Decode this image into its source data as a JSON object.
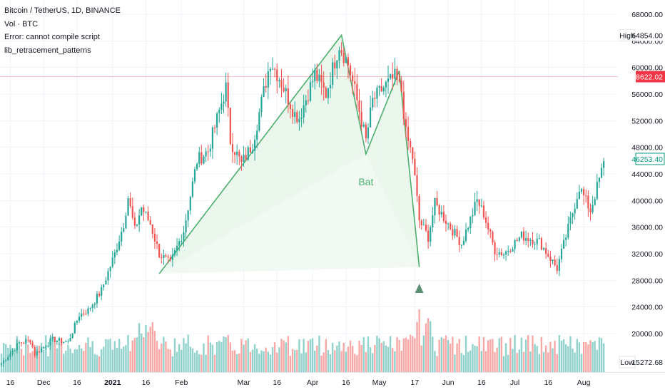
{
  "legend": {
    "line1": "Bitcoin / TetherUS, 1D, BINANCE",
    "line2": "Vol · BTC",
    "line3": "Error: cannot compile script",
    "line4": "lib_retracement_patterns"
  },
  "colors": {
    "up": "#26a69a",
    "down": "#ef5350",
    "pattern_line": "#4caf6e",
    "pattern_fill": "#e8f5e9",
    "price_line": "#f23645",
    "label_green": "#089981"
  },
  "chart_data": {
    "type": "candlestick",
    "title": "Bitcoin / TetherUS, 1D, BINANCE",
    "y_axis": {
      "ticks": [
        68000,
        64000,
        60000,
        56000,
        52000,
        48000,
        44000,
        40000,
        36000,
        32000,
        28000,
        24000,
        20000,
        16000
      ],
      "tick_labels": [
        "68000.00",
        "64000.00",
        "60000.00",
        "56000.00",
        "52000.00",
        "48000.00",
        "44000.00",
        "40000.00",
        "36000.00",
        "32000.00",
        "28000.00",
        "24000.00",
        "20000.00"
      ],
      "range": [
        15000,
        70000
      ]
    },
    "x_axis": {
      "labels": [
        "16",
        "Dec",
        "16",
        "2021",
        "16",
        "Feb",
        "Mar",
        "16",
        "Apr",
        "16",
        "May",
        "17",
        "Jun",
        "16",
        "Jul",
        "16",
        "Aug"
      ],
      "range": [
        "2020-11-12",
        "2021-08-10"
      ]
    },
    "price_labels": [
      {
        "text": "High",
        "value": "64854.00",
        "price": 64854,
        "style": "plain"
      },
      {
        "text": "",
        "value": "58622.02",
        "price": 58622,
        "style": "current"
      },
      {
        "text": "",
        "value": "46253.40",
        "price": 46253,
        "style": "outline"
      },
      {
        "text": "Low",
        "value": "15272.68",
        "price": 15272,
        "style": "plain"
      }
    ],
    "pattern": {
      "name": "Bat",
      "points": [
        {
          "date": "2021-01-22",
          "price": 29000
        },
        {
          "date": "2021-04-14",
          "price": 64854
        },
        {
          "date": "2021-04-25",
          "price": 47000
        },
        {
          "date": "2021-05-10",
          "price": 59500
        },
        {
          "date": "2021-05-19",
          "price": 30000
        }
      ],
      "label": "Bat"
    },
    "keypoints": [
      [
        "2020-11-12",
        15500
      ],
      [
        "2020-11-20",
        18600
      ],
      [
        "2020-11-25",
        19000
      ],
      [
        "2020-11-27",
        16900
      ],
      [
        "2020-12-05",
        19100
      ],
      [
        "2020-12-12",
        18700
      ],
      [
        "2020-12-17",
        22800
      ],
      [
        "2020-12-21",
        23500
      ],
      [
        "2020-12-27",
        26500
      ],
      [
        "2021-01-02",
        32000
      ],
      [
        "2021-01-06",
        36500
      ],
      [
        "2021-01-08",
        40500
      ],
      [
        "2021-01-11",
        35500
      ],
      [
        "2021-01-14",
        39000
      ],
      [
        "2021-01-18",
        36500
      ],
      [
        "2021-01-22",
        32000
      ],
      [
        "2021-01-27",
        30500
      ],
      [
        "2021-02-02",
        35500
      ],
      [
        "2021-02-08",
        46000
      ],
      [
        "2021-02-13",
        47500
      ],
      [
        "2021-02-21",
        57000
      ],
      [
        "2021-02-23",
        49000
      ],
      [
        "2021-02-28",
        45500
      ],
      [
        "2021-03-05",
        48500
      ],
      [
        "2021-03-13",
        61000
      ],
      [
        "2021-03-17",
        58500
      ],
      [
        "2021-03-24",
        53000
      ],
      [
        "2021-03-26",
        52500
      ],
      [
        "2021-04-02",
        59000
      ],
      [
        "2021-04-07",
        56000
      ],
      [
        "2021-04-13",
        63500
      ],
      [
        "2021-04-17",
        60500
      ],
      [
        "2021-04-20",
        56500
      ],
      [
        "2021-04-25",
        49000
      ],
      [
        "2021-04-28",
        55000
      ],
      [
        "2021-05-03",
        57000
      ],
      [
        "2021-05-08",
        58500
      ],
      [
        "2021-05-11",
        56500
      ],
      [
        "2021-05-13",
        50000
      ],
      [
        "2021-05-16",
        46500
      ],
      [
        "2021-05-19",
        37000
      ],
      [
        "2021-05-23",
        34500
      ],
      [
        "2021-05-26",
        39500
      ],
      [
        "2021-06-01",
        36500
      ],
      [
        "2021-06-07",
        33500
      ],
      [
        "2021-06-14",
        40000
      ],
      [
        "2021-06-17",
        38000
      ],
      [
        "2021-06-22",
        32500
      ],
      [
        "2021-06-26",
        32000
      ],
      [
        "2021-07-04",
        34700
      ],
      [
        "2021-07-12",
        33800
      ],
      [
        "2021-07-20",
        29800
      ],
      [
        "2021-07-26",
        37000
      ],
      [
        "2021-07-30",
        42000
      ],
      [
        "2021-08-04",
        38500
      ],
      [
        "2021-08-10",
        45500
      ]
    ],
    "volume_scale": {
      "max": 60000
    }
  }
}
